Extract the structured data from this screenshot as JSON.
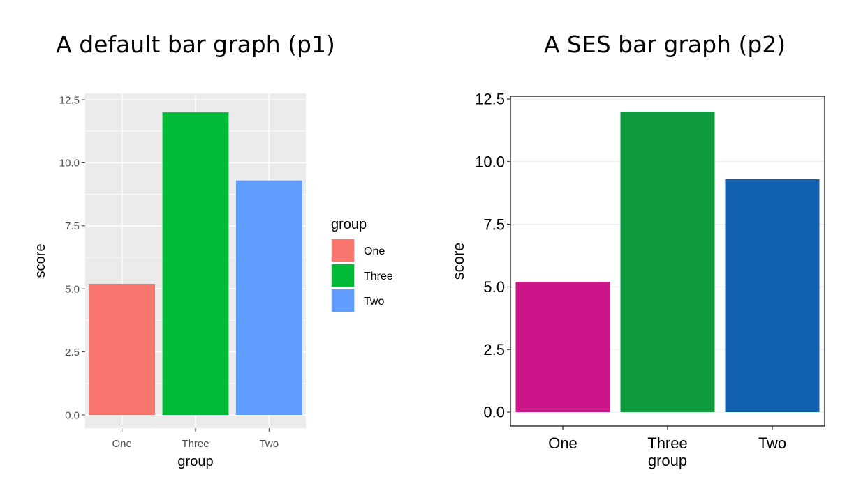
{
  "titles": {
    "left": "A default bar graph (p1)",
    "right": "A SES bar graph (p2)"
  },
  "chart_data": [
    {
      "type": "bar",
      "name": "p1",
      "categories": [
        "One",
        "Three",
        "Two"
      ],
      "values": [
        5.2,
        12,
        9.3
      ],
      "colors": [
        "#F8766D",
        "#00BA38",
        "#619CFF"
      ],
      "xlabel": "group",
      "ylabel": "score",
      "ylim": [
        0,
        12.5
      ],
      "yticks": [
        "0.0",
        "2.5",
        "5.0",
        "7.5",
        "10.0",
        "12.5"
      ],
      "theme": "grey panel with white grid",
      "grid": true,
      "legend": {
        "title": "group",
        "position": "right",
        "entries": [
          "One",
          "Three",
          "Two"
        ]
      }
    },
    {
      "type": "bar",
      "name": "p2",
      "categories": [
        "One",
        "Three",
        "Two"
      ],
      "values": [
        5.2,
        12,
        9.3
      ],
      "colors": [
        "#CB1588",
        "#0F9A3D",
        "#1261B1"
      ],
      "xlabel": "group",
      "ylabel": "score",
      "ylim": [
        0,
        12.5
      ],
      "yticks": [
        "0.0",
        "2.5",
        "5.0",
        "7.5",
        "10.0",
        "12.5"
      ],
      "theme": "white panel with black border and light horizontal grid",
      "grid": true,
      "legend": null
    }
  ]
}
